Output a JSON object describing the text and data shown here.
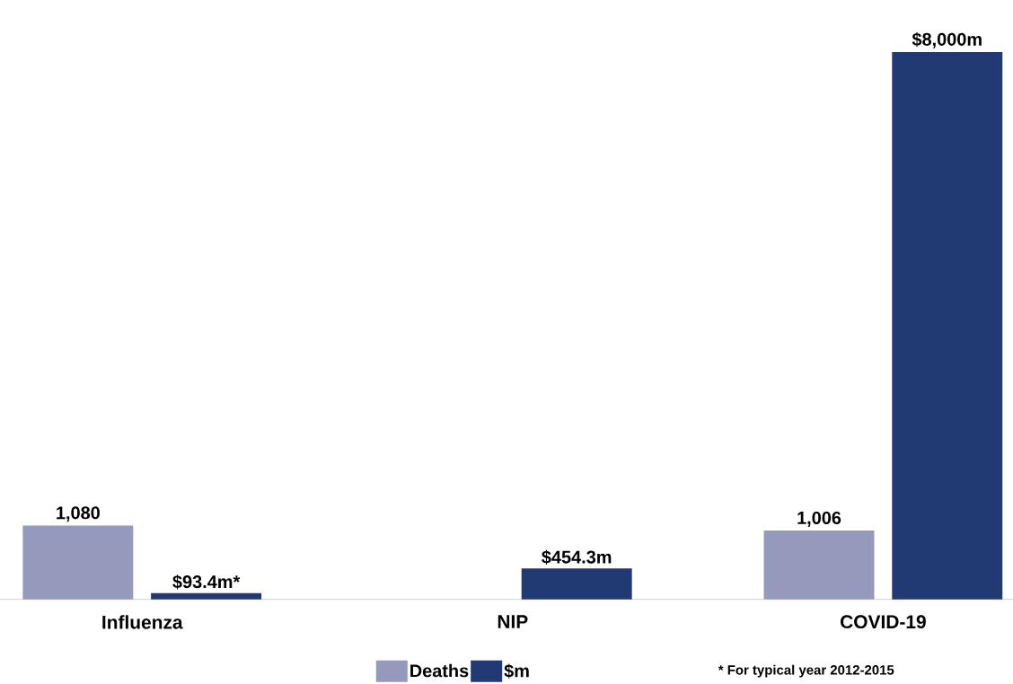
{
  "chart_data": {
    "type": "bar",
    "categories": [
      "Influenza",
      "NIP",
      "COVID-19"
    ],
    "series": [
      {
        "name": "Deaths",
        "color": "#9599bb",
        "values": [
          1080,
          null,
          1006
        ],
        "value_labels": [
          "1,080",
          null,
          "1,006"
        ]
      },
      {
        "name": "$m",
        "color": "#223a73",
        "values": [
          93.4,
          454.3,
          8000
        ],
        "value_labels": [
          "$93.4m*",
          "$454.3m",
          "$8,000m"
        ]
      }
    ],
    "legend": "bottom",
    "annotations": [
      "* For typical year 2012-2015"
    ]
  }
}
